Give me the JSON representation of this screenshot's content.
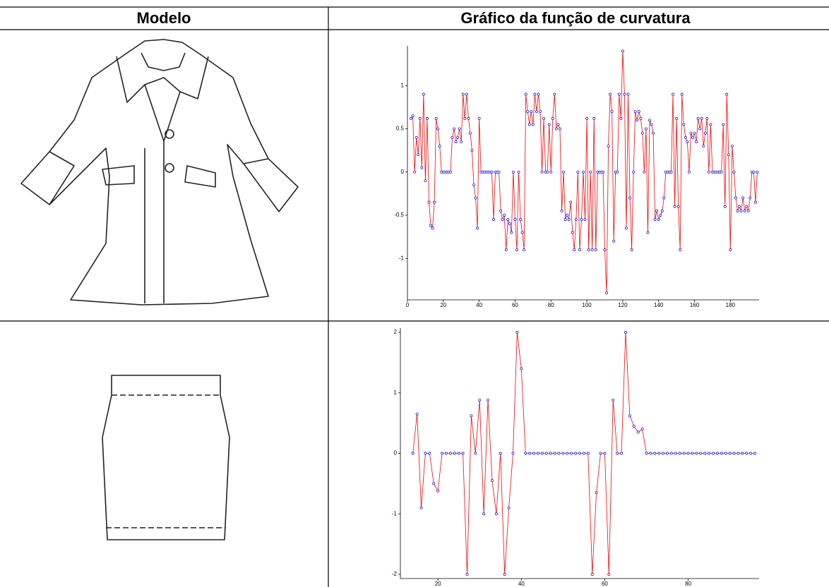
{
  "table": {
    "headers": [
      "Modelo",
      "Gráfico da função de curvatura"
    ]
  },
  "chart_data": [
    {
      "type": "line",
      "color": "#ff0000",
      "marker_color": "#0000ff",
      "xlim": [
        0,
        196
      ],
      "ylim": [
        -1.48,
        1.46
      ],
      "xticks": [
        0,
        20,
        40,
        60,
        80,
        100,
        120,
        140,
        160,
        180
      ],
      "yticks": [
        -1,
        -0.5,
        0,
        0.5,
        1
      ],
      "x": [
        2,
        3,
        4,
        5,
        6,
        7,
        8,
        9,
        10,
        11,
        12,
        13,
        14,
        15,
        16,
        17,
        18,
        19,
        20,
        21,
        22,
        23,
        24,
        25,
        26,
        27,
        28,
        29,
        30,
        31,
        32,
        33,
        34,
        35,
        36,
        37,
        38,
        39,
        40,
        41,
        42,
        43,
        44,
        45,
        46,
        47,
        48,
        49,
        50,
        51,
        52,
        53,
        54,
        55,
        56,
        57,
        58,
        59,
        60,
        61,
        62,
        63,
        64,
        65,
        66,
        67,
        68,
        69,
        70,
        71,
        72,
        73,
        74,
        75,
        76,
        77,
        78,
        79,
        80,
        81,
        82,
        83,
        84,
        85,
        86,
        87,
        88,
        89,
        90,
        91,
        92,
        93,
        94,
        95,
        96,
        97,
        98,
        99,
        100,
        101,
        102,
        103,
        104,
        105,
        106,
        107,
        108,
        109,
        110,
        111,
        112,
        113,
        114,
        115,
        116,
        117,
        118,
        119,
        120,
        121,
        122,
        123,
        124,
        125,
        126,
        127,
        128,
        129,
        130,
        131,
        132,
        133,
        134,
        135,
        136,
        137,
        138,
        139,
        140,
        141,
        142,
        143,
        144,
        145,
        146,
        147,
        148,
        149,
        150,
        151,
        152,
        153,
        154,
        155,
        156,
        157,
        158,
        159,
        160,
        161,
        162,
        163,
        164,
        165,
        166,
        167,
        168,
        169,
        170,
        171,
        172,
        173,
        174,
        175,
        176,
        177,
        178,
        179,
        180,
        181,
        182,
        183,
        184,
        185,
        186,
        187,
        188,
        189,
        190,
        191,
        192,
        193,
        194,
        195
      ],
      "values": [
        0.62,
        0.65,
        0,
        0.4,
        0.2,
        0.62,
        0.05,
        0.9,
        -0.1,
        0.62,
        -0.35,
        -0.62,
        -0.65,
        -0.35,
        0.62,
        0.5,
        0.3,
        0,
        0,
        0,
        0,
        0,
        0,
        0.4,
        0.5,
        0.35,
        0.4,
        0.5,
        0.35,
        0.9,
        0.62,
        0.9,
        0.62,
        0.45,
        0.25,
        -0.15,
        -0.3,
        -0.65,
        0.62,
        0,
        0,
        0,
        0,
        0,
        0,
        0,
        -0.55,
        0,
        0,
        0,
        -0.45,
        -0.55,
        -0.5,
        -0.9,
        -0.55,
        -0.6,
        -0.7,
        0,
        -0.55,
        -0.9,
        0,
        -0.55,
        -0.7,
        -0.9,
        0.9,
        0.7,
        0.55,
        0.7,
        0.55,
        0.9,
        0.7,
        0.9,
        0.7,
        0,
        0.62,
        0,
        0,
        0.55,
        0,
        0.62,
        0.9,
        0.5,
        0.55,
        0.5,
        -0.45,
        0,
        -0.55,
        -0.5,
        -0.55,
        -0.35,
        -0.7,
        -0.9,
        -0.55,
        0,
        -0.9,
        -0.55,
        0,
        -0.55,
        0.62,
        -0.9,
        0,
        -0.9,
        0.62,
        -0.9,
        0,
        0,
        0,
        0,
        -0.9,
        -1.4,
        0.3,
        0.9,
        0.7,
        -0.8,
        0,
        0,
        0.9,
        0.62,
        1.4,
        0.9,
        -0.65,
        0.9,
        -0.3,
        -0.9,
        0,
        0.7,
        0.6,
        0.7,
        0.62,
        0.45,
        0,
        0.5,
        -0.7,
        0.6,
        0.55,
        0.45,
        -0.55,
        -0.45,
        -0.55,
        -0.5,
        -0.45,
        -0.3,
        0,
        0,
        0,
        0,
        0.9,
        -0.4,
        0.62,
        -0.4,
        -0.9,
        0.9,
        0.55,
        0.4,
        0.35,
        0,
        0.45,
        0.4,
        0.45,
        0.35,
        0.62,
        0.5,
        0.62,
        0.3,
        0.45,
        0.62,
        0,
        0.55,
        0,
        0,
        0,
        0,
        0,
        0,
        0.55,
        -0.4,
        0.9,
        0.2,
        -0.9,
        0.3,
        0,
        -0.3,
        -0.45,
        -0.4,
        -0.45,
        -0.3,
        -0.45,
        -0.4,
        -0.45,
        -0.3,
        0,
        0,
        -0.35,
        0
      ]
    },
    {
      "type": "line",
      "color": "#ff0000",
      "marker_color": "#0000ff",
      "xlim": [
        11,
        97
      ],
      "ylim": [
        -2.07,
        2.07
      ],
      "xticks": [
        20,
        40,
        60,
        80
      ],
      "yticks": [
        -2,
        -1,
        0,
        1,
        2
      ],
      "x": [
        14,
        15,
        16,
        17,
        18,
        19,
        20,
        21,
        22,
        23,
        24,
        25,
        26,
        27,
        28,
        29,
        30,
        31,
        32,
        33,
        34,
        35,
        36,
        37,
        38,
        39,
        40,
        41,
        42,
        43,
        44,
        45,
        46,
        47,
        48,
        49,
        50,
        51,
        52,
        53,
        54,
        55,
        56,
        57,
        58,
        59,
        60,
        61,
        62,
        63,
        64,
        65,
        66,
        67,
        68,
        69,
        70,
        71,
        72,
        73,
        74,
        75,
        76,
        77,
        78,
        79,
        80,
        81,
        82,
        83,
        84,
        85,
        86,
        87,
        88,
        89,
        90,
        91,
        92,
        93,
        94,
        95,
        96
      ],
      "values": [
        0,
        0.65,
        -0.9,
        0,
        0,
        -0.5,
        -0.62,
        0,
        0,
        0,
        0,
        0,
        0,
        -2,
        0.62,
        0,
        0.88,
        -1,
        0.88,
        -0.45,
        -1,
        0,
        -2,
        -0.9,
        0,
        2,
        1.4,
        0,
        0,
        0,
        0,
        0,
        0,
        0,
        0,
        0,
        0,
        0,
        0,
        0,
        0,
        0,
        0,
        -2,
        -0.65,
        0,
        0,
        -2,
        0.88,
        0,
        0,
        2,
        0.62,
        0.45,
        0.35,
        0.4,
        0,
        0,
        0,
        0,
        0,
        0,
        0,
        0,
        0,
        0,
        0,
        0,
        0,
        0,
        0,
        0,
        0,
        0,
        0,
        0,
        0,
        0,
        0,
        0,
        0,
        0,
        0
      ]
    }
  ]
}
